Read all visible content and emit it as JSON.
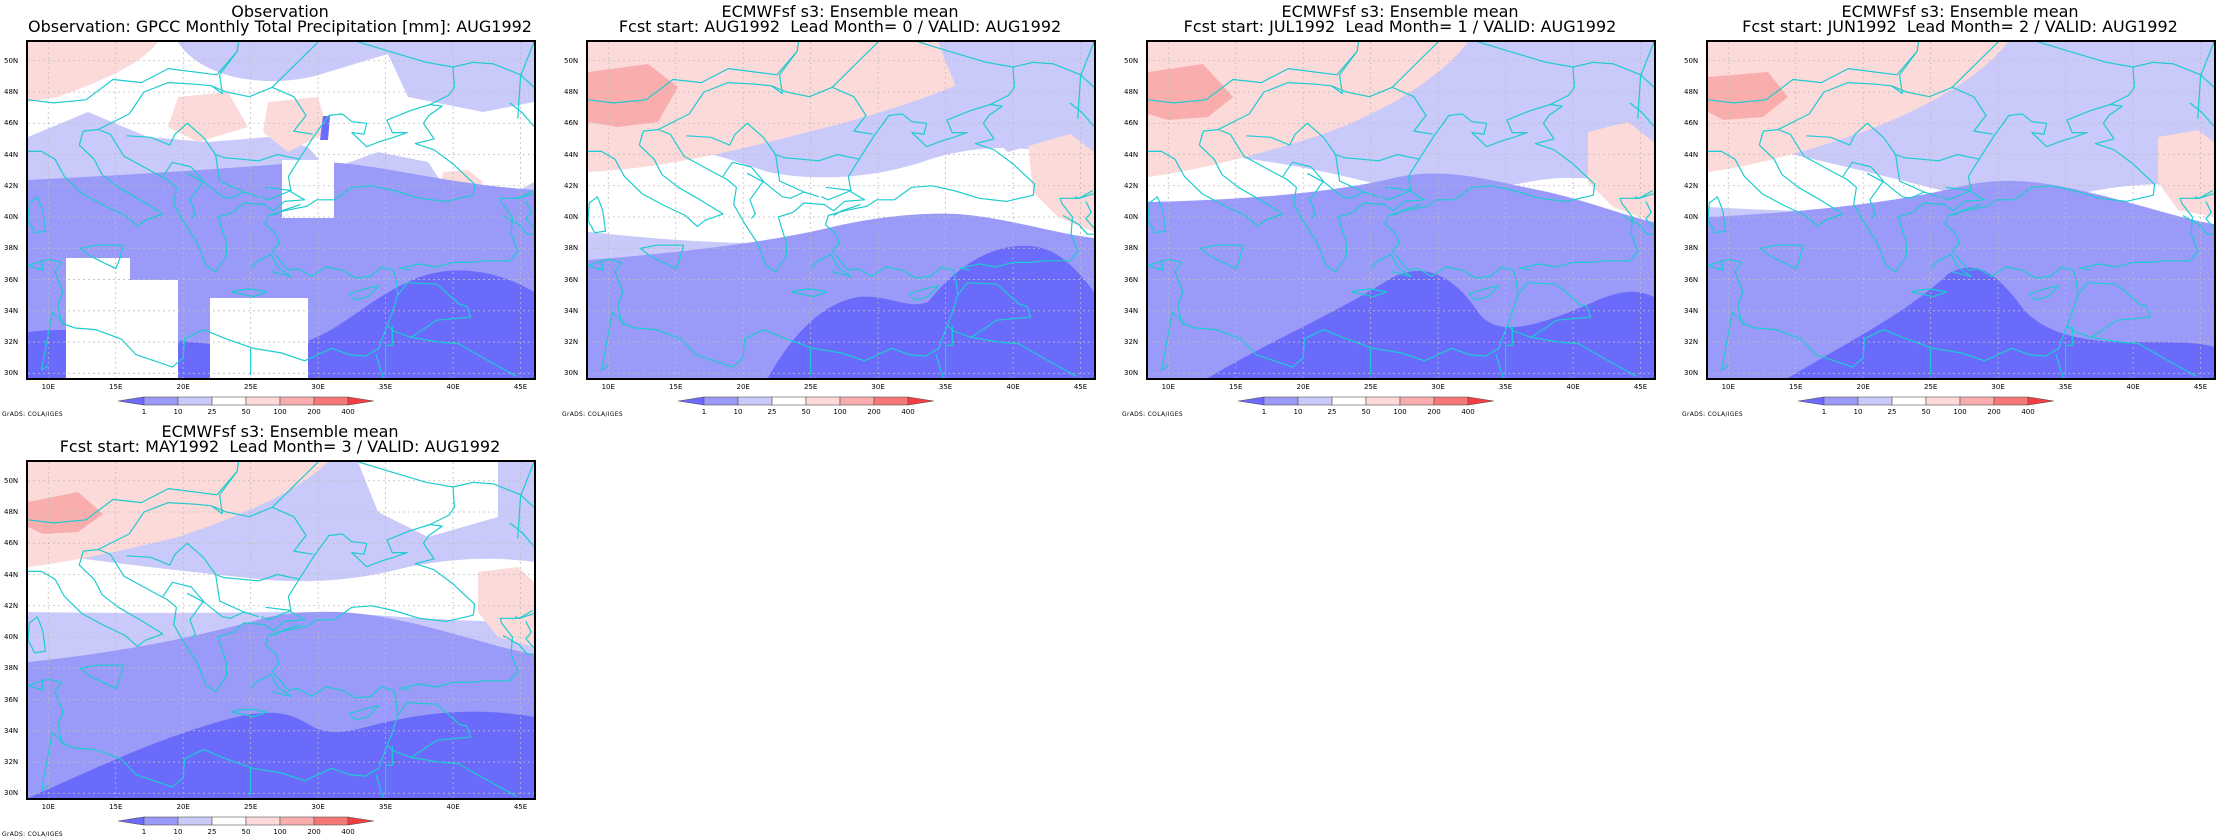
{
  "panels": [
    {
      "title1": "Observation",
      "title2": "Observation: GPCC Monthly Total Precipitation [mm]: AUG1992",
      "variant": "obs"
    },
    {
      "title1": "ECMWFsf s3: Ensemble mean",
      "title2": "Fcst start: AUG1992  Lead Month= 0 / VALID: AUG1992",
      "variant": "f0"
    },
    {
      "title1": "ECMWFsf s3: Ensemble mean",
      "title2": "Fcst start: JUL1992  Lead Month= 1 / VALID: AUG1992",
      "variant": "f1"
    },
    {
      "title1": "ECMWFsf s3: Ensemble mean",
      "title2": "Fcst start: JUN1992  Lead Month= 2 / VALID: AUG1992",
      "variant": "f2"
    },
    {
      "title1": "ECMWFsf s3: Ensemble mean",
      "title2": "Fcst start: MAY1992  Lead Month= 3 / VALID: AUG1992",
      "variant": "f3"
    }
  ],
  "y_ticks": [
    "50N",
    "48N",
    "46N",
    "44N",
    "42N",
    "40N",
    "38N",
    "36N",
    "34N",
    "32N",
    "30N"
  ],
  "x_ticks": [
    "10E",
    "15E",
    "20E",
    "25E",
    "30E",
    "35E",
    "40E",
    "45E"
  ],
  "map_extent": {
    "lon": [
      8.5,
      46
    ],
    "lat": [
      29.7,
      51.2
    ]
  },
  "colorbar": {
    "labels": [
      "1",
      "10",
      "25",
      "50",
      "100",
      "200",
      "400"
    ],
    "colors": [
      "#6a6afb",
      "#9a9af8",
      "#c9c9fa",
      "#ffffff",
      "#fcdada",
      "#faadad",
      "#f77676",
      "#f53d3d"
    ]
  },
  "credit": "GrADS: COLA/IGES",
  "palette": {
    "coast": "#1ecbd0",
    "grid": "#bdbdbd"
  }
}
